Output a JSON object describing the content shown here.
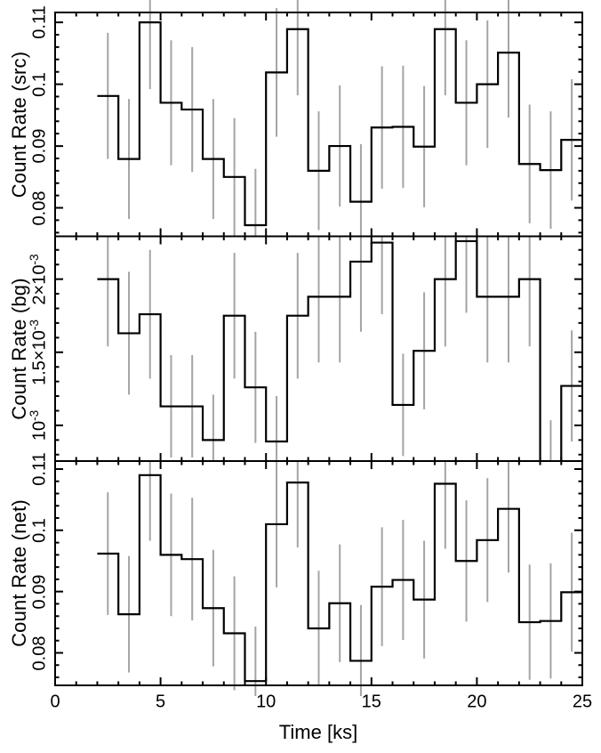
{
  "chart_data": {
    "type": "line",
    "subtype": "step-histogram-with-error-bars",
    "title": "",
    "background_color": "#ffffff",
    "step_line_color": "#000000",
    "error_bar_color": "#a4a4a4",
    "grid": false,
    "legend": false,
    "x": {
      "label": "Time [ks]",
      "min": 0,
      "max": 25,
      "major_ticks": [
        0,
        5,
        10,
        15,
        20,
        25
      ],
      "minor_step": 1
    },
    "bin_edges": [
      2,
      3,
      4,
      5,
      6,
      7,
      8,
      9,
      10,
      11,
      12,
      13,
      14,
      15,
      16,
      17,
      18,
      19,
      20,
      21,
      22,
      23,
      24,
      25
    ],
    "panels": [
      {
        "id": "src",
        "ylabel": "Count Rate (src)",
        "ymin": 0.0754,
        "ymax": 0.1116,
        "minor_step": 0.002,
        "major_ticks": [
          {
            "v": 0.08,
            "label": "0.08"
          },
          {
            "v": 0.09,
            "label": "0.09"
          },
          {
            "v": 0.1,
            "label": "0.1"
          },
          {
            "v": 0.11,
            "label": "0.11"
          }
        ],
        "values": [
          0.0981,
          0.0879,
          0.11,
          0.097,
          0.0959,
          0.0879,
          0.085,
          0.0772,
          0.1019,
          0.1089,
          0.086,
          0.09,
          0.081,
          0.093,
          0.0931,
          0.0899,
          0.1089,
          0.097,
          0.1,
          0.1051,
          0.0871,
          0.0861,
          0.091
        ],
        "errors": [
          0.0102,
          0.0097,
          0.0108,
          0.0101,
          0.0101,
          0.0097,
          0.0095,
          0.0091,
          0.0104,
          0.0107,
          0.0096,
          0.0098,
          0.0093,
          0.0099,
          0.0099,
          0.0098,
          0.0107,
          0.0101,
          0.0103,
          0.0105,
          0.0096,
          0.0095,
          0.0098
        ]
      },
      {
        "id": "bg",
        "ylabel": "Count Rate (bg)",
        "ymin": 0.000756,
        "ymax": 0.002293,
        "minor_step": 0.0001,
        "major_ticks": [
          {
            "v": 0.001,
            "label": "10^{-3}"
          },
          {
            "v": 0.0015,
            "label": "1.5×10^{-3}"
          },
          {
            "v": 0.002,
            "label": "2×10^{-3}"
          }
        ],
        "values": [
          0.002,
          0.00163,
          0.00176,
          0.00113,
          0.00113,
          0.0009,
          0.00175,
          0.00126,
          0.00089,
          0.00175,
          0.00188,
          0.00188,
          0.00212,
          0.00225,
          0.00114,
          0.00151,
          0.002,
          0.00226,
          0.00188,
          0.00188,
          0.002,
          0.000755,
          0.00127
        ],
        "errors": [
          0.00046,
          0.00042,
          0.00044,
          0.00035,
          0.00035,
          0.00031,
          0.00043,
          0.00038,
          0.00031,
          0.00043,
          0.00045,
          0.00045,
          0.00048,
          0.00049,
          0.00035,
          0.0004,
          0.00046,
          0.00049,
          0.00045,
          0.00045,
          0.00046,
          0.00028,
          0.00038
        ]
      },
      {
        "id": "net",
        "ylabel": "Count Rate (net)",
        "ymin": 0.0747,
        "ymax": 0.1113,
        "minor_step": 0.002,
        "major_ticks": [
          {
            "v": 0.08,
            "label": "0.08"
          },
          {
            "v": 0.09,
            "label": "0.09"
          },
          {
            "v": 0.1,
            "label": "0.1"
          },
          {
            "v": 0.11,
            "label": "0.11"
          }
        ],
        "values": [
          0.0962,
          0.0863,
          0.109,
          0.096,
          0.0953,
          0.0873,
          0.0832,
          0.0754,
          0.101,
          0.1078,
          0.084,
          0.0881,
          0.0787,
          0.0908,
          0.0919,
          0.0887,
          0.1076,
          0.095,
          0.0984,
          0.1035,
          0.085,
          0.0852,
          0.0899
        ],
        "errors": [
          0.01,
          0.0095,
          0.0107,
          0.01,
          0.01,
          0.0095,
          0.0093,
          0.0089,
          0.0103,
          0.0106,
          0.0094,
          0.0096,
          0.0091,
          0.0097,
          0.0098,
          0.0096,
          0.0106,
          0.0099,
          0.0101,
          0.0104,
          0.0094,
          0.0094,
          0.0097
        ]
      }
    ]
  }
}
